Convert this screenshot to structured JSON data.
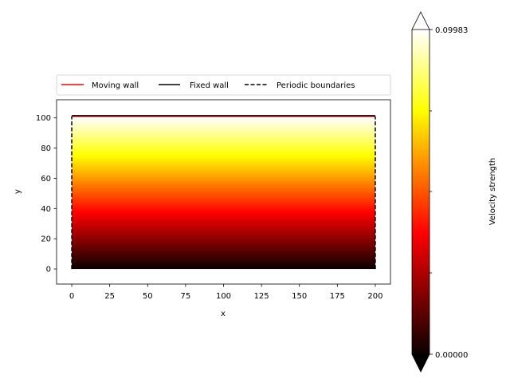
{
  "chart_data": {
    "type": "heatmap",
    "title": "",
    "xlabel": "x",
    "ylabel": "y",
    "xlim": [
      -10,
      210
    ],
    "ylim": [
      -10,
      112
    ],
    "x_ticks": [
      0,
      25,
      50,
      75,
      100,
      125,
      150,
      175,
      200
    ],
    "x_tick_labels": [
      "0",
      "25",
      "50",
      "75",
      "100",
      "125",
      "150",
      "175",
      "200"
    ],
    "y_ticks": [
      0,
      20,
      40,
      60,
      80,
      100
    ],
    "y_tick_labels": [
      "0",
      "20",
      "40",
      "60",
      "80",
      "100"
    ],
    "field": {
      "description_var": "velocity magnitude",
      "x_range": [
        0,
        200
      ],
      "y_range": [
        0,
        100
      ],
      "profile": "linear in y",
      "value_at_y0": 0.0,
      "value_at_ymax": 0.09983
    },
    "colormap": "hot",
    "colorbar": {
      "label": "Velocity strength",
      "min": 0.0,
      "max": 0.09983,
      "min_label": "0.00000",
      "max_label": "0.09983",
      "extend": "both"
    },
    "boundaries": [
      {
        "name": "Moving wall",
        "color": "#ff0000",
        "style": "solid",
        "points": [
          [
            0,
            101
          ],
          [
            200,
            101
          ]
        ]
      },
      {
        "name": "Fixed wall",
        "color": "#000000",
        "style": "solid",
        "points": [
          [
            0,
            101.5
          ],
          [
            200,
            101.5
          ]
        ]
      },
      {
        "name": "Periodic boundaries",
        "color": "#000000",
        "style": "dashed",
        "points": [
          [
            0,
            0
          ],
          [
            0,
            101
          ]
        ]
      },
      {
        "name": "Periodic boundaries",
        "color": "#000000",
        "style": "dashed",
        "points": [
          [
            200,
            0
          ],
          [
            200,
            101
          ]
        ]
      }
    ],
    "legend": {
      "placement": "top",
      "entries": [
        {
          "label": "Moving wall",
          "color": "#ff0000",
          "style": "solid"
        },
        {
          "label": "Fixed wall",
          "color": "#000000",
          "style": "solid"
        },
        {
          "label": "Periodic boundaries",
          "color": "#000000",
          "style": "dashed"
        }
      ]
    },
    "grid": false
  }
}
